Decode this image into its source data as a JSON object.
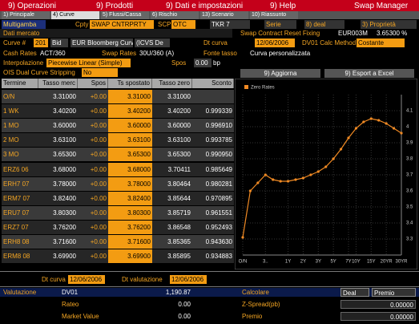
{
  "menu": {
    "items": [
      "9) Operazioni",
      "9) Prodotti",
      "9) Dati e impostazioni",
      "9) Help"
    ],
    "app": "Swap Manager"
  },
  "tabs": [
    "1) Principale",
    "4) Curve",
    "5) Flussi/Cassa",
    "6) Rischio",
    "13) Scenario",
    "10) Riassunto"
  ],
  "header": {
    "multigamba": "Multigamba",
    "cpty_label": "Cpty",
    "cpty": "SWAP CNTRPRTY",
    "scp_label": "SCP",
    "scp": "OTC",
    "tkr": "TKR 7",
    "serie": "Serie",
    "deal": "8) deal",
    "props": "3) Proprietà"
  },
  "market": {
    "title": "Dati mercato",
    "reset_label": "Swap Contract Reset Fixing",
    "reset_index": "EUR003M",
    "reset_rate": "3.65300 %",
    "curve_label": "Curve #",
    "curve_num": "201",
    "side": "Bid",
    "curve_name": "EUR Bloomberg Curve",
    "curve_src": "(ICVS De",
    "dt_label": "Dt curva",
    "dt": "12/06/2006",
    "dv01_label": "DV01 Calc Method",
    "dv01": "Costante",
    "cash_label": "Cash Rates",
    "cash": "ACT/360",
    "swap_label": "Swap Rates",
    "swap": "30U/360 (A)",
    "fonte_label": "Fonte tasso",
    "fonte": "Curva personalizzata",
    "interp_label": "Interpolazione",
    "interp": "Piecewise Linear (Simple)",
    "spos_label": "Spos",
    "spos": "0.00",
    "spos_unit": "bp",
    "ois_label": "OIS Dual Curve Stripping",
    "ois": "No",
    "update": "9) Aggiorna",
    "export": "9) Esport a Excel"
  },
  "table": {
    "columns": [
      "Termine",
      "Tasso merc",
      "Spos",
      "Ts spostato",
      "Tasso zero",
      "Sconto"
    ],
    "rows": [
      [
        "O/N",
        "3.31000",
        "+0.00",
        "3.31000",
        "3.31000",
        ""
      ],
      [
        "1 WK",
        "3.40200",
        "+0.00",
        "3.40200",
        "3.40200",
        "0.999339"
      ],
      [
        "1 MO",
        "3.60000",
        "+0.00",
        "3.60000",
        "3.60000",
        "0.996910"
      ],
      [
        "2 MO",
        "3.63100",
        "+0.00",
        "3.63100",
        "3.63100",
        "0.993785"
      ],
      [
        "3 MO",
        "3.65300",
        "+0.00",
        "3.65300",
        "3.65300",
        "0.990950"
      ],
      [
        "ERZ6 06",
        "3.68000",
        "+0.00",
        "3.68000",
        "3.70411",
        "0.985649"
      ],
      [
        "ERH7 07",
        "3.78000",
        "+0.00",
        "3.78000",
        "3.80464",
        "0.980281"
      ],
      [
        "ERM7 07",
        "3.82400",
        "+0.00",
        "3.82400",
        "3.85644",
        "0.970895"
      ],
      [
        "ERU7 07",
        "3.80300",
        "+0.00",
        "3.80300",
        "3.85719",
        "0.961551"
      ],
      [
        "ERZ7 07",
        "3.76200",
        "+0.00",
        "3.76200",
        "3.86548",
        "0.952493"
      ],
      [
        "ERH8 08",
        "3.71600",
        "+0.00",
        "3.71600",
        "3.85365",
        "0.943630"
      ],
      [
        "ERM8 08",
        "3.69900",
        "+0.00",
        "3.69900",
        "3.85895",
        "0.934883"
      ]
    ]
  },
  "chart_data": {
    "type": "line",
    "legend": "Zero Rates",
    "color": "#f08a24",
    "categories": [
      "O/N",
      null,
      null,
      "3..",
      null,
      null,
      "1Y",
      null,
      "2Y",
      null,
      "3Y",
      null,
      "5Y",
      null,
      "7Y",
      "10Y",
      null,
      "15Y",
      null,
      "20YR",
      null,
      "30YR"
    ],
    "values": [
      3.31,
      3.6,
      3.65,
      3.7,
      3.67,
      3.66,
      3.66,
      3.67,
      3.68,
      3.7,
      3.72,
      3.75,
      3.8,
      3.86,
      3.93,
      3.99,
      4.03,
      4.05,
      4.04,
      4.02,
      3.99,
      3.96
    ],
    "ylim": [
      3.2,
      4.2
    ],
    "yticks": [
      3.3,
      3.4,
      3.5,
      3.6,
      3.7,
      3.8,
      3.9,
      4,
      4.1
    ],
    "grid": true
  },
  "footer": {
    "dt_label": "Dt curva",
    "dt": "12/06/2006",
    "val_label": "Dt valutazione",
    "val": "12/06/2006",
    "valutazione": "Valutazione",
    "dv01": "DV01",
    "dv01_val": "1,190.87",
    "rateo": "Rateo",
    "rateo_val": "0.00",
    "mv": "Market Value",
    "mv_val": "0.00",
    "calc": "Calcolare",
    "deal": "Deal",
    "premio_sel": "Premio",
    "zspread": "Z-Spread(pb)",
    "zspread_val": "0.00000",
    "premio": "Premio",
    "premio_val": "0.00000"
  }
}
